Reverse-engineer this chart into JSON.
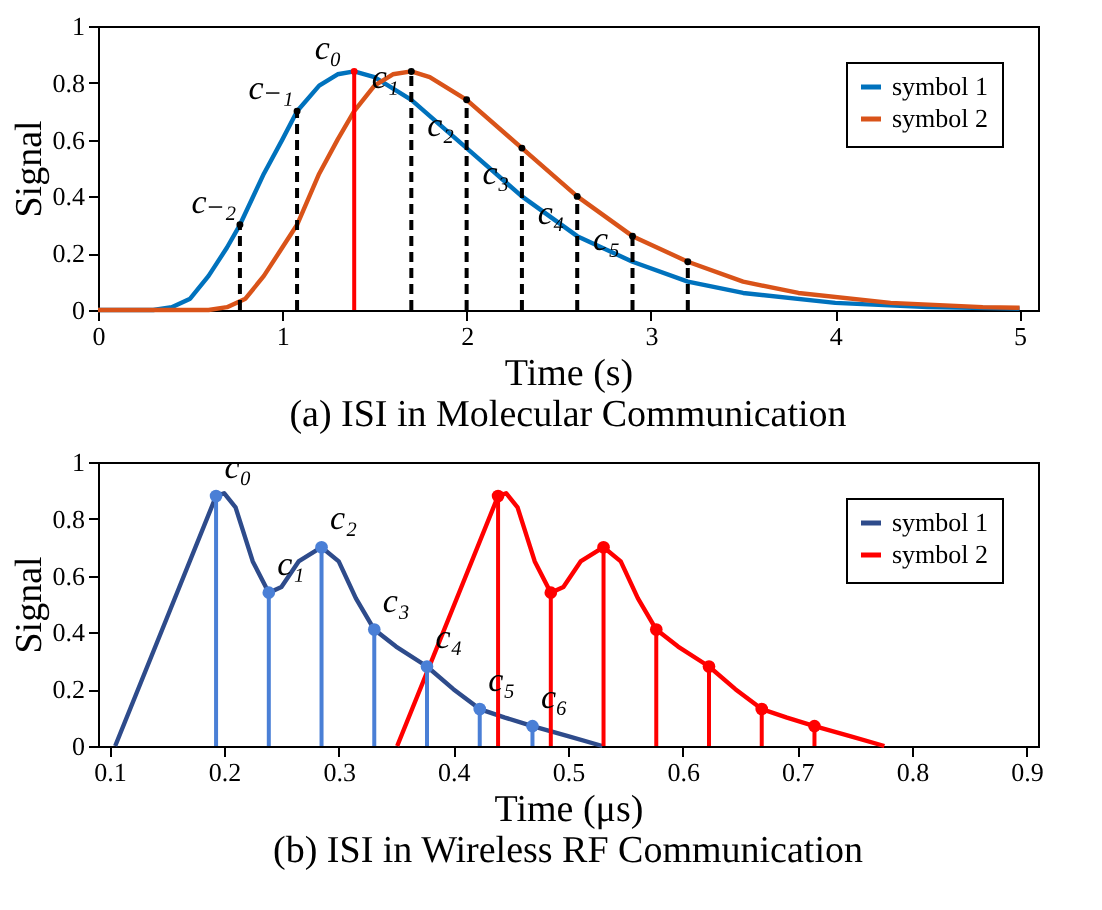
{
  "chart_data": [
    {
      "type": "line",
      "title": "(a) ISI in Molecular Communication",
      "xlabel": "Time (s)",
      "ylabel": "Signal",
      "xlim": [
        0,
        5.1
      ],
      "xticks": [
        0,
        1,
        2,
        3,
        4,
        5
      ],
      "ylim": [
        0,
        1
      ],
      "yticks": [
        0,
        0.2,
        0.4,
        0.6,
        0.8,
        1
      ],
      "legend": "top right",
      "series": [
        {
          "name": "symbol 1",
          "color": "#0072bd",
          "x": [
            0,
            0.3,
            0.4,
            0.5,
            0.6,
            0.7,
            0.77,
            0.9,
            1.0,
            1.08,
            1.2,
            1.3,
            1.39,
            1.5,
            1.7,
            2.0,
            2.3,
            2.6,
            2.9,
            3.2,
            3.5,
            4.0,
            4.5,
            5.0
          ],
          "values": [
            0,
            0,
            0.01,
            0.04,
            0.12,
            0.22,
            0.3,
            0.48,
            0.6,
            0.7,
            0.79,
            0.83,
            0.84,
            0.82,
            0.74,
            0.57,
            0.4,
            0.26,
            0.17,
            0.1,
            0.06,
            0.025,
            0.01,
            0.005
          ]
        },
        {
          "name": "symbol 2",
          "color": "#d95319",
          "x": [
            0,
            0.6,
            0.7,
            0.8,
            0.9,
            1.0,
            1.08,
            1.2,
            1.3,
            1.39,
            1.5,
            1.6,
            1.7,
            1.8,
            2.0,
            2.3,
            2.6,
            2.9,
            3.2,
            3.5,
            3.8,
            4.3,
            4.8,
            5.0
          ],
          "values": [
            0,
            0,
            0.01,
            0.04,
            0.12,
            0.22,
            0.3,
            0.48,
            0.6,
            0.7,
            0.79,
            0.83,
            0.84,
            0.82,
            0.74,
            0.57,
            0.4,
            0.26,
            0.17,
            0.1,
            0.06,
            0.025,
            0.01,
            0.008
          ]
        },
        {
          "color": "#000000",
          "type": "lollipop",
          "marker": "none",
          "line_style": "dashed",
          "x": [
            0.77,
            1.08,
            1.7,
            2.0,
            2.3,
            2.6,
            2.9,
            3.2
          ],
          "values": [
            0.3,
            0.7,
            0.84,
            0.74,
            0.57,
            0.4,
            0.26,
            0.17
          ]
        },
        {
          "color": "#ff0000",
          "type": "lollipop",
          "marker": "none",
          "line_style": "solid",
          "x": [
            1.39
          ],
          "values": [
            0.84
          ]
        }
      ],
      "annotations": [
        {
          "text": "c₋₂",
          "x": 0.77,
          "y": 0.3
        },
        {
          "text": "c₋₁",
          "x": 1.08,
          "y": 0.7
        },
        {
          "text": "c₀",
          "x": 1.39,
          "y": 0.84
        },
        {
          "text": "c₁",
          "x": 1.7,
          "y": 0.74
        },
        {
          "text": "c₂",
          "x": 2.0,
          "y": 0.57
        },
        {
          "text": "c₃",
          "x": 2.3,
          "y": 0.4
        },
        {
          "text": "c₄",
          "x": 2.6,
          "y": 0.26
        },
        {
          "text": "c₅",
          "x": 2.9,
          "y": 0.17
        }
      ]
    },
    {
      "type": "line",
      "title": "(b) ISI in Wireless RF Communication",
      "xlabel": "Time (μs)",
      "ylabel": "Signal",
      "xlim": [
        0.09,
        0.91
      ],
      "xticks": [
        0.1,
        0.2,
        0.3,
        0.4,
        0.5,
        0.6,
        0.7,
        0.8,
        0.9
      ],
      "ylim": [
        0,
        1
      ],
      "yticks": [
        0,
        0.2,
        0.4,
        0.6,
        0.8,
        1
      ],
      "legend": "top right",
      "series": [
        {
          "name": "symbol 1",
          "color": "#2e4b8b",
          "x": [
            0.105,
            0.15,
            0.193,
            0.2,
            0.21,
            0.225,
            0.239,
            0.25,
            0.265,
            0.285,
            0.3,
            0.315,
            0.331,
            0.35,
            0.377,
            0.4,
            0.423,
            0.445,
            0.469,
            0.5,
            0.53
          ],
          "values": [
            0,
            0.45,
            0.88,
            0.89,
            0.84,
            0.65,
            0.54,
            0.56,
            0.65,
            0.7,
            0.65,
            0.52,
            0.41,
            0.35,
            0.28,
            0.2,
            0.13,
            0.1,
            0.07,
            0.035,
            0
          ]
        },
        {
          "name": "symbol 2",
          "color": "#ff0000",
          "x": [
            0.351,
            0.396,
            0.439,
            0.446,
            0.456,
            0.471,
            0.485,
            0.496,
            0.511,
            0.531,
            0.546,
            0.561,
            0.577,
            0.596,
            0.623,
            0.646,
            0.669,
            0.691,
            0.715,
            0.746,
            0.776
          ],
          "values": [
            0,
            0.45,
            0.88,
            0.89,
            0.84,
            0.65,
            0.54,
            0.56,
            0.65,
            0.7,
            0.65,
            0.52,
            0.41,
            0.35,
            0.28,
            0.2,
            0.13,
            0.1,
            0.07,
            0.035,
            0
          ]
        },
        {
          "color": "#4a7fd6",
          "type": "lollipop",
          "marker": "circle",
          "line_style": "solid",
          "x": [
            0.193,
            0.239,
            0.285,
            0.331,
            0.377,
            0.423,
            0.469
          ],
          "values": [
            0.88,
            0.54,
            0.7,
            0.41,
            0.28,
            0.13,
            0.07
          ]
        },
        {
          "color": "#ff0000",
          "type": "lollipop",
          "marker": "circle",
          "line_style": "solid",
          "x": [
            0.439,
            0.485,
            0.531,
            0.577,
            0.623,
            0.669,
            0.715
          ],
          "values": [
            0.88,
            0.54,
            0.7,
            0.41,
            0.28,
            0.13,
            0.07
          ]
        }
      ],
      "annotations": [
        {
          "text": "c₀",
          "x": 0.193,
          "y": 0.88
        },
        {
          "text": "c₁",
          "x": 0.239,
          "y": 0.54
        },
        {
          "text": "c₂",
          "x": 0.285,
          "y": 0.7
        },
        {
          "text": "c₃",
          "x": 0.331,
          "y": 0.41
        },
        {
          "text": "c₄",
          "x": 0.377,
          "y": 0.28
        },
        {
          "text": "c₅",
          "x": 0.423,
          "y": 0.13
        },
        {
          "text": "c₆",
          "x": 0.469,
          "y": 0.07
        }
      ]
    }
  ]
}
